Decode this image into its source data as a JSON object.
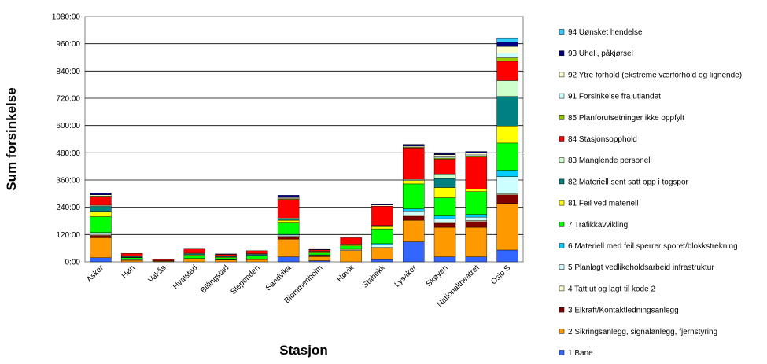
{
  "chart_data": {
    "type": "bar",
    "stacked": true,
    "xlabel": "Stasjon",
    "ylabel": "Sum forsinkelse",
    "ylim": [
      0,
      1080
    ],
    "y_ticks": [
      "0:00",
      "120:00",
      "240:00",
      "360:00",
      "480:00",
      "600:00",
      "720:00",
      "840:00",
      "960:00",
      "1080:00"
    ],
    "grid": "horizontal",
    "legend_position": "right",
    "categories": [
      "Asker",
      "Høn",
      "Vakås",
      "Hvalstad",
      "Billingstad",
      "Slependen",
      "Sandvika",
      "Blommenholm",
      "Høvik",
      "Stabekk",
      "Lysaker",
      "Skøyen",
      "Nationaltheatret",
      "Oslo S"
    ],
    "series": [
      {
        "name": "1 Bane",
        "color": "#3366ff",
        "values": [
          18,
          0,
          0,
          0,
          0,
          0,
          22,
          5,
          0,
          10,
          88,
          22,
          22,
          52
        ]
      },
      {
        "name": "2 Sikringsanlegg, signalanlegg, fjernstyring",
        "color": "#ff9900",
        "values": [
          88,
          7,
          3,
          12,
          8,
          10,
          78,
          18,
          50,
          50,
          95,
          130,
          130,
          205
        ]
      },
      {
        "name": "3 Elkraft/Kontaktledningsanlegg",
        "color": "#800000",
        "values": [
          10,
          0,
          0,
          0,
          0,
          0,
          8,
          4,
          0,
          0,
          18,
          18,
          25,
          38
        ]
      },
      {
        "name": "4 Tatt ut og lagt til kode 2",
        "color": "#ffffcc",
        "values": [
          5,
          3,
          0,
          3,
          2,
          3,
          5,
          2,
          5,
          5,
          5,
          5,
          5,
          5
        ]
      },
      {
        "name": "5 Planlagt vedlikeholdsarbeid infrastruktur",
        "color": "#ccffff",
        "values": [
          5,
          0,
          0,
          0,
          0,
          0,
          5,
          2,
          0,
          10,
          15,
          15,
          15,
          75
        ]
      },
      {
        "name": "6 Materiell med feil sperrer sporet/blokkstrekning",
        "color": "#00ccff",
        "values": [
          3,
          0,
          0,
          0,
          0,
          0,
          3,
          0,
          0,
          5,
          12,
          12,
          12,
          28
        ]
      },
      {
        "name": "7 Trafikkavvikling",
        "color": "#00ff00",
        "values": [
          70,
          8,
          2,
          12,
          9,
          12,
          50,
          8,
          15,
          65,
          110,
          80,
          100,
          120
        ]
      },
      {
        "name": "81 Feil ved materiell",
        "color": "#ffff00",
        "values": [
          20,
          2,
          0,
          3,
          3,
          3,
          12,
          3,
          8,
          10,
          15,
          45,
          12,
          75
        ]
      },
      {
        "name": "82 Materiell sent satt opp i togspor",
        "color": "#008080",
        "values": [
          25,
          3,
          0,
          5,
          3,
          5,
          5,
          3,
          0,
          5,
          0,
          40,
          0,
          130
        ]
      },
      {
        "name": "83 Manglende personell",
        "color": "#ccffcc",
        "values": [
          5,
          2,
          0,
          3,
          2,
          3,
          5,
          2,
          0,
          0,
          5,
          20,
          0,
          70
        ]
      },
      {
        "name": "84 Stasjonsopphold",
        "color": "#ff0000",
        "values": [
          38,
          12,
          5,
          18,
          6,
          13,
          82,
          6,
          28,
          85,
          138,
          65,
          140,
          85
        ]
      },
      {
        "name": "85 Planforutsetninger ikke oppfylt",
        "color": "#99cc00",
        "values": [
          3,
          0,
          0,
          0,
          0,
          0,
          3,
          0,
          0,
          0,
          3,
          5,
          5,
          15
        ]
      },
      {
        "name": "91 Forsinkelse fra utlandet",
        "color": "#ccffff",
        "values": [
          0,
          0,
          0,
          0,
          0,
          0,
          0,
          0,
          0,
          0,
          0,
          5,
          5,
          20
        ]
      },
      {
        "name": "92 Ytre forhold (ekstreme værforhold og lignende)",
        "color": "#ffffcc",
        "values": [
          5,
          0,
          0,
          0,
          0,
          0,
          5,
          0,
          0,
          5,
          5,
          10,
          10,
          30
        ]
      },
      {
        "name": "93 Uhell, påkjørsel",
        "color": "#000080",
        "values": [
          8,
          0,
          0,
          0,
          2,
          0,
          10,
          2,
          0,
          5,
          8,
          5,
          5,
          20
        ]
      },
      {
        "name": "94 Uønsket hendelse",
        "color": "#33ccff",
        "values": [
          0,
          0,
          0,
          0,
          0,
          0,
          0,
          0,
          0,
          0,
          0,
          0,
          0,
          18
        ]
      }
    ]
  }
}
